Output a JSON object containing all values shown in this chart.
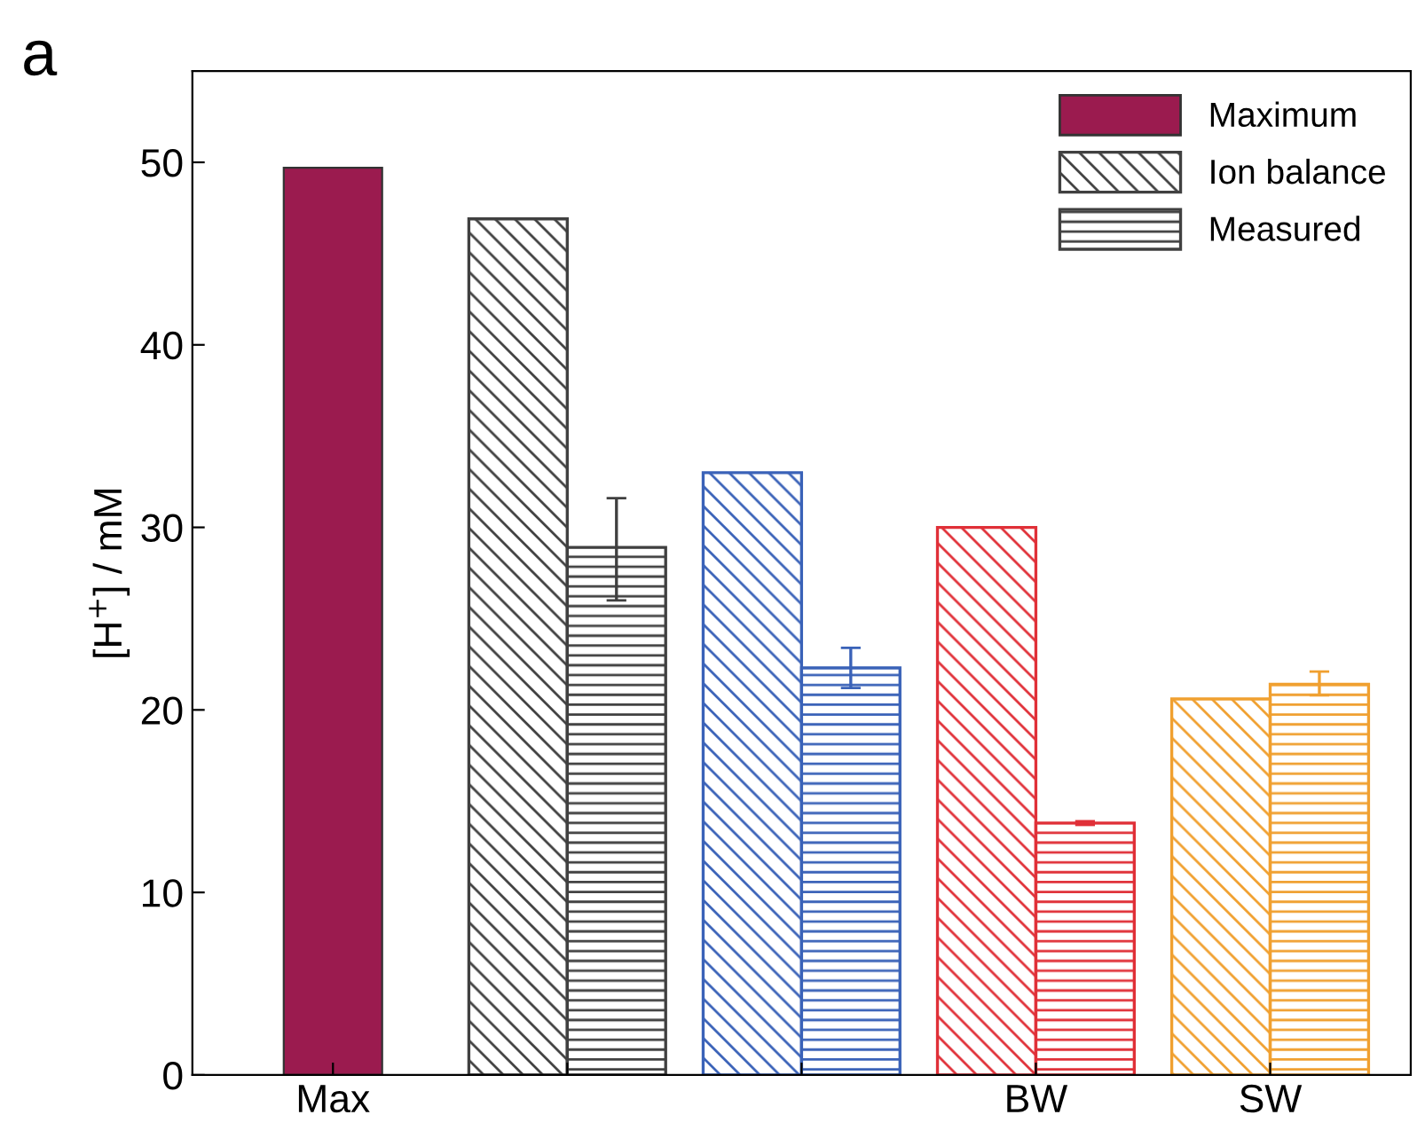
{
  "chart_data": {
    "type": "bar",
    "categories": [
      "Max",
      null,
      null,
      "BW",
      "SW"
    ],
    "ylabel": "[H$^{+}$] / mM",
    "annotations": [
      "a"
    ],
    "series": [
      {
        "name": "Maximum",
        "color": "#9b1b4f",
        "colors": [
          "#9b1b4f",
          null,
          null,
          null,
          null
        ],
        "values": [
          49.7,
          null,
          null,
          null,
          null
        ]
      },
      {
        "name": "Ion balance",
        "color": "#404040",
        "colors": [
          null,
          "#404040",
          "#3a62b8",
          "#e03038",
          "#f0a030"
        ],
        "values": [
          null,
          46.9,
          33.0,
          30.0,
          20.6
        ]
      },
      {
        "name": "Measured",
        "color": "#404040",
        "colors": [
          null,
          "#404040",
          "#3a62b8",
          "#e03038",
          "#f0a030"
        ],
        "values": [
          null,
          28.9,
          22.3,
          13.8,
          21.4
        ],
        "errors": [
          null,
          [
            26.0,
            31.6
          ],
          [
            21.2,
            23.4
          ],
          [
            13.7,
            13.9
          ],
          [
            20.8,
            22.1
          ]
        ]
      }
    ],
    "ylim": [
      0,
      55
    ],
    "yticks": [
      0,
      10,
      20,
      30,
      40,
      50
    ],
    "legend": "top right"
  }
}
